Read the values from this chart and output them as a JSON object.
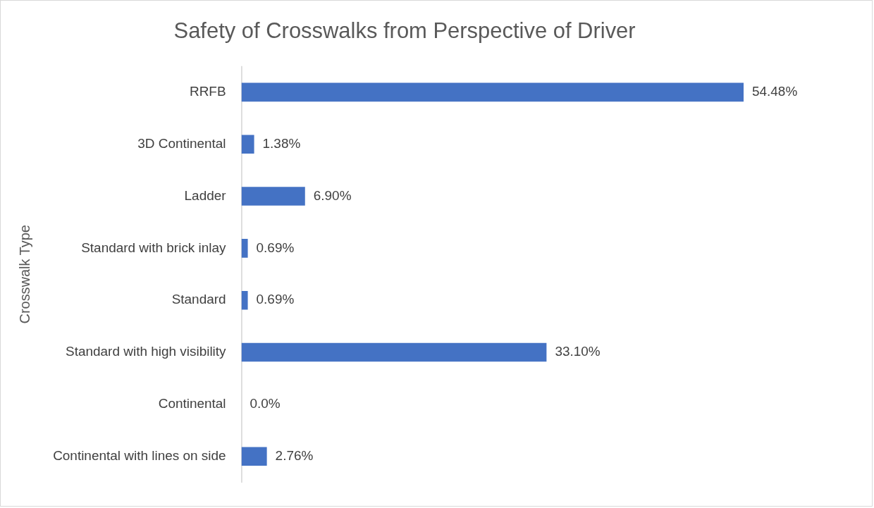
{
  "chart_data": {
    "type": "bar",
    "orientation": "horizontal",
    "title": "Safety of Crosswalks from Perspective of Driver",
    "ylabel": "Crosswalk Type",
    "categories": [
      "RRFB",
      "3D Continental",
      "Ladder",
      "Standard with brick inlay",
      "Standard",
      "Standard with high visibility",
      "Continental",
      "Continental with lines on side"
    ],
    "values": [
      54.48,
      1.38,
      6.9,
      0.69,
      0.69,
      33.1,
      0.0,
      2.76
    ],
    "value_labels": [
      "54.48%",
      "1.38%",
      "6.90%",
      "0.69%",
      "0.69%",
      "33.10%",
      "0.0%",
      "2.76%"
    ],
    "color": "#4472c4",
    "tick_labels": "y",
    "legend": false
  }
}
